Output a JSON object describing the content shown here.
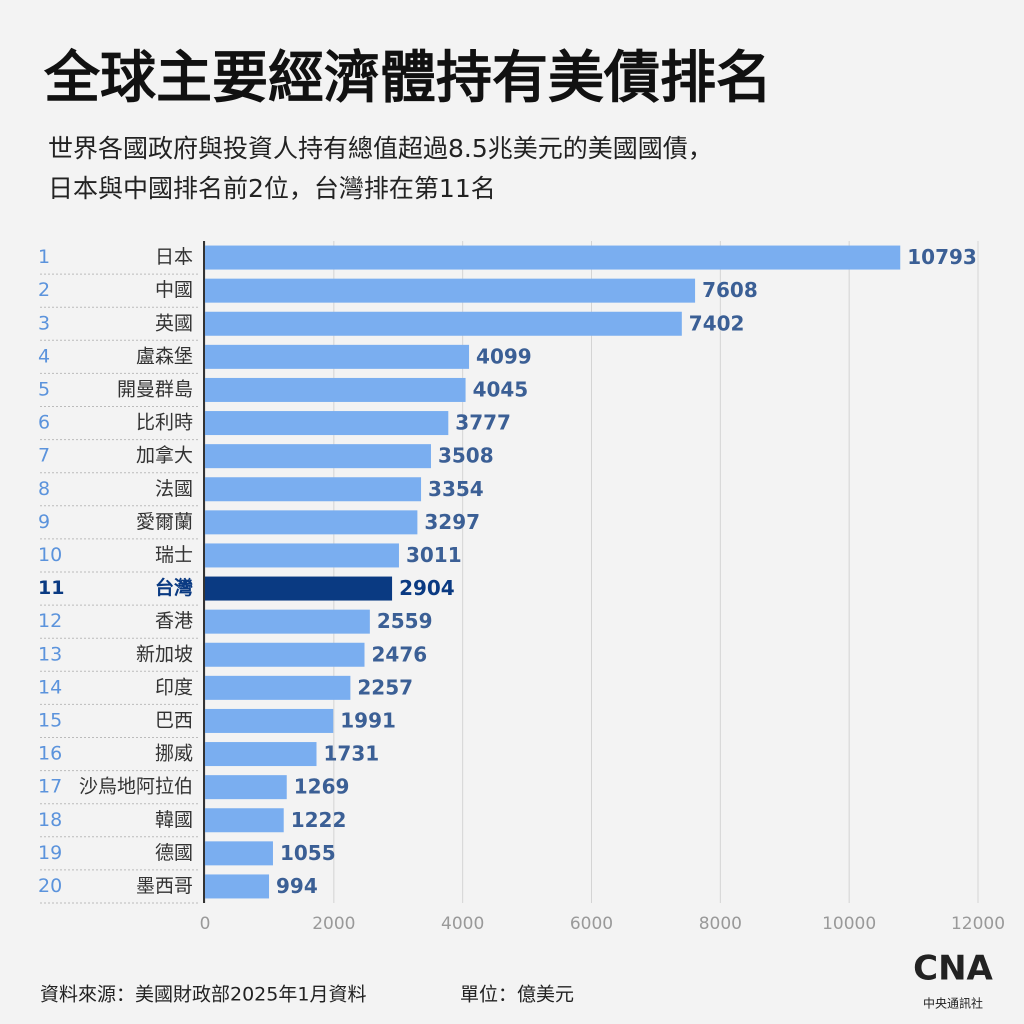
{
  "chart_data": {
    "type": "hbar",
    "title": "全球主要經濟體持有美債排名",
    "subtitle": [
      "世界各國政府與投資人持有總值超過8.5兆美元的美國國債，",
      "日本與中國排名前2位，台灣排在第11名"
    ],
    "ranks": [
      1,
      2,
      3,
      4,
      5,
      6,
      7,
      8,
      9,
      10,
      11,
      12,
      13,
      14,
      15,
      16,
      17,
      18,
      19,
      20
    ],
    "categories": [
      "日本",
      "中國",
      "英國",
      "盧森堡",
      "開曼群島",
      "比利時",
      "加拿大",
      "法國",
      "愛爾蘭",
      "瑞士",
      "台灣",
      "香港",
      "新加坡",
      "印度",
      "巴西",
      "挪威",
      "沙烏地阿拉伯",
      "韓國",
      "德國",
      "墨西哥"
    ],
    "values": [
      10793,
      7608,
      7402,
      4099,
      4045,
      3777,
      3508,
      3354,
      3297,
      3011,
      2904,
      2559,
      2476,
      2257,
      1991,
      1731,
      1269,
      1222,
      1055,
      994
    ],
    "colors": [
      "#7aaef0",
      "#7aaef0",
      "#7aaef0",
      "#7aaef0",
      "#7aaef0",
      "#7aaef0",
      "#7aaef0",
      "#7aaef0",
      "#7aaef0",
      "#7aaef0",
      "#0a3a82",
      "#7aaef0",
      "#7aaef0",
      "#7aaef0",
      "#7aaef0",
      "#7aaef0",
      "#7aaef0",
      "#7aaef0",
      "#7aaef0",
      "#7aaef0"
    ],
    "xlim": [
      0,
      12000
    ],
    "xticks": [
      0,
      2000,
      4000,
      6000,
      8000,
      10000,
      12000
    ],
    "grid": true,
    "source": "資料來源：美國財政部2025年1月資料",
    "unit": "單位：億美元",
    "logo": {
      "mark": "CNA",
      "name": "中央通訊社"
    }
  }
}
